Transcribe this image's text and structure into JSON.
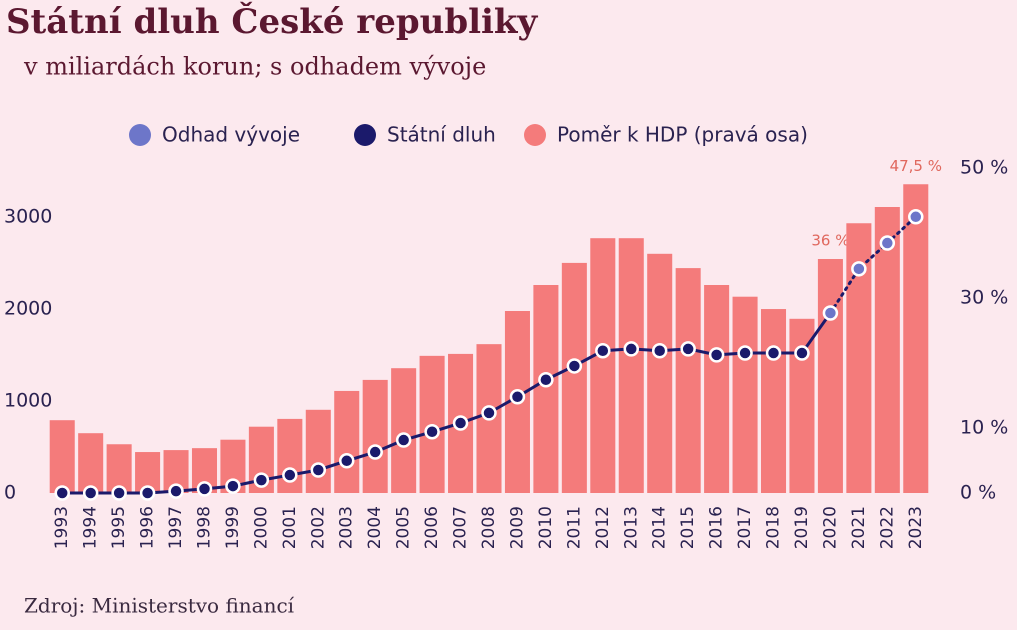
{
  "chart_data": {
    "type": "bar-line",
    "title": "Státní dluh České republiky",
    "subtitle": "v miliardách korun; s odhadem vývoje",
    "source": "Zdroj: Ministerstvo financí",
    "categories": [
      "1993",
      "1994",
      "1995",
      "1996",
      "1997",
      "1998",
      "1999",
      "2000",
      "2001",
      "2002",
      "2003",
      "2004",
      "2005",
      "2006",
      "2007",
      "2008",
      "2009",
      "2010",
      "2011",
      "2012",
      "2013",
      "2014",
      "2015",
      "2016",
      "2017",
      "2018",
      "2019",
      "2020",
      "2021",
      "2022",
      "2023"
    ],
    "series": [
      {
        "name": "Odhad vývoje",
        "color": "#6d76c9",
        "values": [
          null,
          null,
          null,
          null,
          null,
          null,
          null,
          null,
          null,
          null,
          null,
          null,
          null,
          null,
          null,
          null,
          null,
          null,
          null,
          null,
          null,
          null,
          null,
          null,
          null,
          null,
          null,
          1955,
          2435,
          2715,
          3000
        ]
      },
      {
        "name": "Státní dluh",
        "color": "#1b1a6b",
        "values": [
          0,
          0,
          0,
          0,
          20,
          45,
          75,
          140,
          195,
          250,
          350,
          445,
          575,
          665,
          760,
          870,
          1045,
          1230,
          1380,
          1545,
          1565,
          1545,
          1565,
          1500,
          1520,
          1520,
          1520,
          null,
          null,
          null,
          null
        ]
      },
      {
        "name": "Poměr k HDP (pravá osa)",
        "color": "#f47b7b",
        "axis": "y2",
        "values": [
          11.2,
          9.2,
          7.5,
          6.3,
          6.6,
          6.9,
          8.2,
          10.2,
          11.4,
          12.8,
          15.7,
          17.4,
          19.2,
          21.1,
          21.4,
          22.9,
          28,
          32,
          35.4,
          39.2,
          39.2,
          36.8,
          34.6,
          32,
          30.2,
          28.3,
          26.8,
          36,
          41.5,
          44,
          47.5
        ],
        "value_labels": [
          null,
          null,
          null,
          null,
          null,
          null,
          null,
          null,
          null,
          null,
          null,
          null,
          null,
          null,
          null,
          null,
          null,
          null,
          null,
          null,
          null,
          null,
          null,
          null,
          null,
          null,
          null,
          "36 %",
          null,
          null,
          "47,5 %"
        ]
      }
    ],
    "ylim": [
      0,
      3530
    ],
    "yticks": [
      0,
      1000,
      2000,
      3000
    ],
    "y2lim": [
      0,
      50
    ],
    "y2ticks": [
      {
        "value": 0,
        "label": "0 %"
      },
      {
        "value": 10,
        "label": "10 %"
      },
      {
        "value": 30,
        "label": "30 %"
      },
      {
        "value": 50,
        "label": "50 %"
      }
    ]
  }
}
